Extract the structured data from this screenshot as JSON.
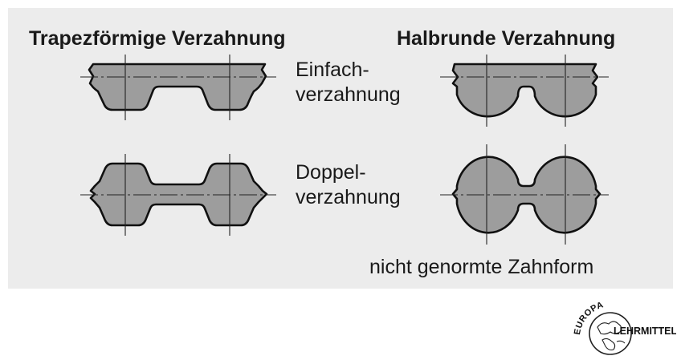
{
  "headings": {
    "trapezoidal": "Trapezförmige Verzahnung",
    "semicircular": "Halbrunde Verzahnung"
  },
  "labels": {
    "single_line1": "Einfach-",
    "single_line2": "verzahnung",
    "double_line1": "Doppel-",
    "double_line2": "verzahnung",
    "nonstandard": "nicht genormte Zahnform"
  },
  "logo": {
    "top": "EUROPA",
    "right": "LEHRMITTEL"
  },
  "colors": {
    "panel": "#ececec",
    "belt_fill": "#9d9d9d",
    "outline": "#111111"
  }
}
